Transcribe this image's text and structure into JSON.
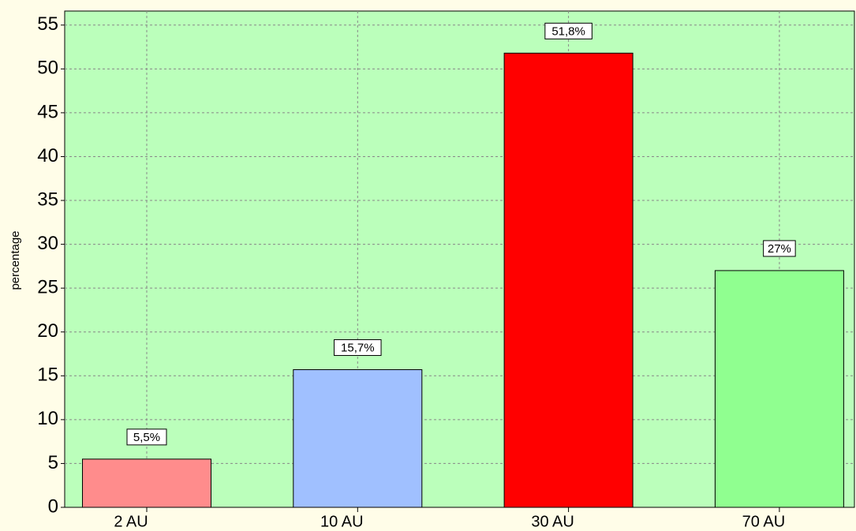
{
  "chart_data": {
    "type": "bar",
    "y_label": "percentage",
    "categories": [
      "2 AU",
      "10 AU",
      "30 AU",
      "70 AU"
    ],
    "values": [
      5.5,
      15.7,
      51.8,
      27
    ],
    "value_labels": [
      "5,5%",
      "15,7%",
      "51,8%",
      "27%"
    ],
    "colors": [
      "#ff8c8c",
      "#a0c0ff",
      "#ff0000",
      "#90ff90"
    ],
    "ylim": [
      0,
      56.6
    ],
    "yticks": [
      0,
      5,
      10,
      15,
      20,
      25,
      30,
      35,
      40,
      45,
      50,
      55
    ],
    "grid": true
  }
}
